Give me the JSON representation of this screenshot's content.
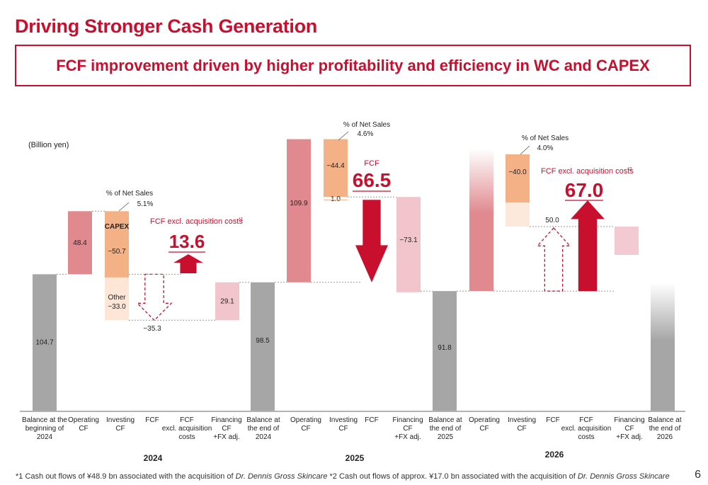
{
  "title": "Driving Stronger Cash Generation",
  "subtitle": "FCF improvement driven by higher profitability and efficiency in WC and CAPEX",
  "unit_label": "(Billion yen)",
  "page_number": "6",
  "footnote": {
    "part1": "*1 Cash out flows of ¥48.9 bn associated with the acquisition of ",
    "brand1": "Dr. Dennis Gross Skincare",
    "part2": "  *2 Cash out flows of approx. ¥17.0 bn associated with the acquisition of ",
    "brand2": "Dr. Dennis Gross Skincare"
  },
  "colors": {
    "accent": "#c8102e",
    "operating": "#e08a8f",
    "investing": "#f4b185",
    "financing": "#f2c4cc",
    "balance": "#a6a6a6"
  },
  "chart_data": {
    "type": "waterfall",
    "unit": "Billion yen",
    "years": [
      {
        "year": "2024",
        "opening_balance": {
          "label": "Balance at the beginning of 2024",
          "value": 104.7,
          "text": "104.7"
        },
        "operating_cf": {
          "label": "Operating CF",
          "value": 48.4,
          "text": "48.4"
        },
        "investing_cf": {
          "label": "Investing CF",
          "capex_label": "CAPEX",
          "capex": -50.7,
          "capex_text": "−50.7",
          "other_label": "Other",
          "other": -33.0,
          "other_text": "−33.0",
          "net_sales_note": "% of Net Sales",
          "net_sales_pct": "5.1%"
        },
        "fcf": {
          "label": "FCF",
          "value": -35.3,
          "text": "−35.3"
        },
        "fcf_excl": {
          "label": "FCF excl. acquisition costs",
          "note": "*1",
          "value": 13.6,
          "text": "13.6"
        },
        "financing_cf": {
          "label": "Financing CF +FX adj.",
          "value": 29.1,
          "text": "29.1"
        },
        "closing_balance": {
          "label": "Balance at the end of 2024",
          "value": 98.5,
          "text": "98.5"
        }
      },
      {
        "year": "2025",
        "operating_cf": {
          "label": "Operating CF",
          "value": 109.9,
          "text": "109.9"
        },
        "investing_cf": {
          "label": "Investing CF",
          "value": -44.4,
          "text": "−44.4",
          "extra_text": "1.0",
          "net_sales_note": "% of Net Sales",
          "net_sales_pct": "4.6%"
        },
        "fcf": {
          "label": "FCF",
          "value": 66.5,
          "text": "66.5"
        },
        "financing_cf": {
          "label": "Financing CF +FX adj.",
          "value": -73.1,
          "text": "−73.1"
        },
        "closing_balance": {
          "label": "Balance at the end of 2025",
          "value": 91.8,
          "text": "91.8"
        }
      },
      {
        "year": "2026",
        "operating_cf": {
          "label": "Operating CF"
        },
        "investing_cf": {
          "label": "Investing CF",
          "value": -40.0,
          "text": "−40.0",
          "net_sales_note": "% of Net Sales",
          "net_sales_pct": "4.0%"
        },
        "fcf": {
          "label": "FCF",
          "value": 50.0,
          "text": "50.0"
        },
        "fcf_excl": {
          "label": "FCF excl. acquisition costs",
          "note": "*2",
          "value": 67.0,
          "text": "67.0"
        },
        "financing_cf": {
          "label": "Financing CF +FX adj."
        },
        "closing_balance": {
          "label": "Balance at the end of 2026"
        }
      }
    ],
    "x_labels": [
      "Balance at the|beginning of|2024",
      "Operating|CF",
      "Investing|CF",
      "FCF",
      "FCF|excl. acquisition|costs",
      "Financing|CF|+FX adj.",
      "Balance at|the end of|2024",
      "Operating|CF",
      "Investing|CF",
      "FCF",
      "Financing|CF|+FX adj.",
      "Balance at|the end of|2025",
      "Operating|CF",
      "Investing|CF",
      "FCF",
      "FCF|excl. acquisition|costs",
      "Financing|CF|+FX adj.",
      "Balance at|the end of|2026"
    ]
  }
}
